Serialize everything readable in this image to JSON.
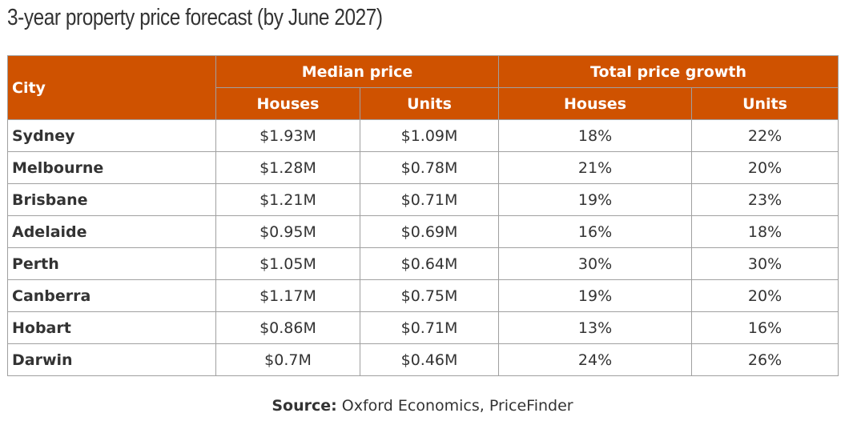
{
  "title": "3-year property price forecast (by June 2027)",
  "chart_data": {
    "type": "table",
    "title": "3-year property price forecast (by June 2027)",
    "header_groups": {
      "city": "City",
      "median_price": "Median price",
      "total_growth": "Total price growth"
    },
    "subheaders": {
      "median_houses": "Houses",
      "median_units": "Units",
      "growth_houses": "Houses",
      "growth_units": "Units"
    },
    "rows": [
      {
        "city": "Sydney",
        "median_houses": "$1.93M",
        "median_units": "$1.09M",
        "growth_houses": "18%",
        "growth_units": "22%"
      },
      {
        "city": "Melbourne",
        "median_houses": "$1.28M",
        "median_units": "$0.78M",
        "growth_houses": "21%",
        "growth_units": "20%"
      },
      {
        "city": "Brisbane",
        "median_houses": "$1.21M",
        "median_units": "$0.71M",
        "growth_houses": "19%",
        "growth_units": "23%"
      },
      {
        "city": "Adelaide",
        "median_houses": "$0.95M",
        "median_units": "$0.69M",
        "growth_houses": "16%",
        "growth_units": "18%"
      },
      {
        "city": "Perth",
        "median_houses": "$1.05M",
        "median_units": "$0.64M",
        "growth_houses": "30%",
        "growth_units": "30%"
      },
      {
        "city": "Canberra",
        "median_houses": "$1.17M",
        "median_units": "$0.75M",
        "growth_houses": "19%",
        "growth_units": "20%"
      },
      {
        "city": "Hobart",
        "median_houses": "$0.86M",
        "median_units": "$0.71M",
        "growth_houses": "13%",
        "growth_units": "16%"
      },
      {
        "city": "Darwin",
        "median_houses": "$0.7M",
        "median_units": "$0.46M",
        "growth_houses": "24%",
        "growth_units": "26%"
      }
    ]
  },
  "source": {
    "label": "Source:",
    "text": " Oxford Economics, PriceFinder"
  },
  "colors": {
    "header_bg": "#cf5200",
    "header_text": "#ffffff",
    "border": "#a0a0a0",
    "text": "#333333"
  }
}
